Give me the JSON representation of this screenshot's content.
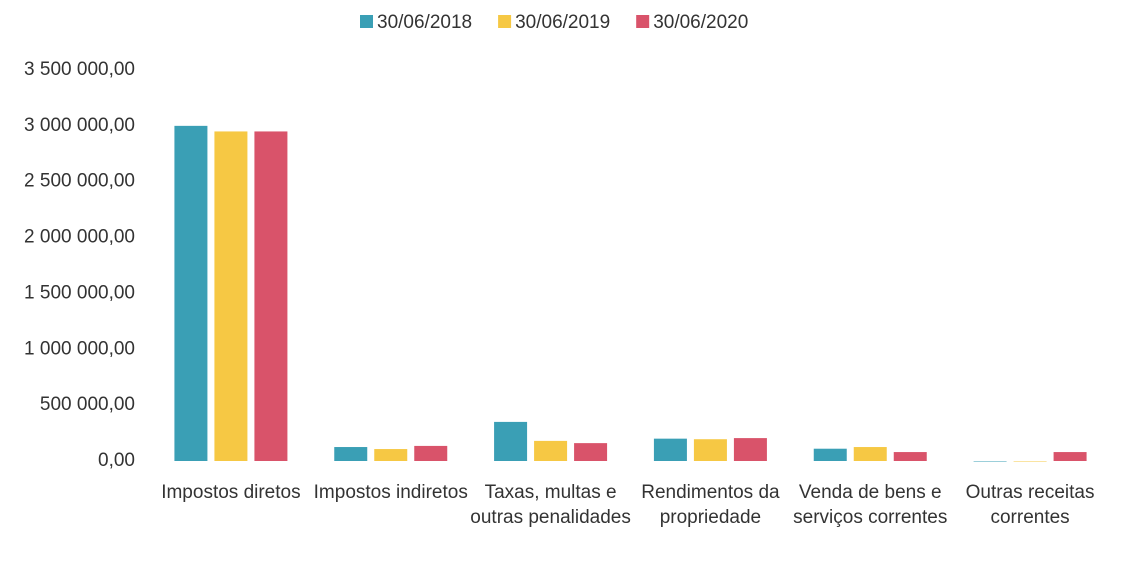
{
  "chart_data": {
    "type": "bar",
    "categories": [
      "Impostos diretos",
      "Impostos indiretos",
      "Taxas, multas e outras penalidades",
      "Rendimentos da propriedade",
      "Venda de bens e serviços correntes",
      "Outras receitas correntes"
    ],
    "series": [
      {
        "name": "30/06/2018",
        "color": "#3a9fb5",
        "values": [
          3000000,
          125000,
          350000,
          200000,
          110000,
          0
        ]
      },
      {
        "name": "30/06/2019",
        "color": "#f6c844",
        "values": [
          2950000,
          107000,
          180000,
          195000,
          125000,
          0
        ]
      },
      {
        "name": "30/06/2020",
        "color": "#d9536a",
        "values": [
          2950000,
          135000,
          160000,
          205000,
          80000,
          80000
        ]
      }
    ],
    "ylim": [
      0,
      3500000
    ],
    "yticks": [
      {
        "value": 0,
        "label": "0,00"
      },
      {
        "value": 500000,
        "label": "500 000,00"
      },
      {
        "value": 1000000,
        "label": "1 000 000,00"
      },
      {
        "value": 1500000,
        "label": "1 500 000,00"
      },
      {
        "value": 2000000,
        "label": "2 000 000,00"
      },
      {
        "value": 2500000,
        "label": "2 500 000,00"
      },
      {
        "value": 3000000,
        "label": "3 000 000,00"
      },
      {
        "value": 3500000,
        "label": "3 500 000,00"
      }
    ],
    "grid": false,
    "legend": "top"
  }
}
